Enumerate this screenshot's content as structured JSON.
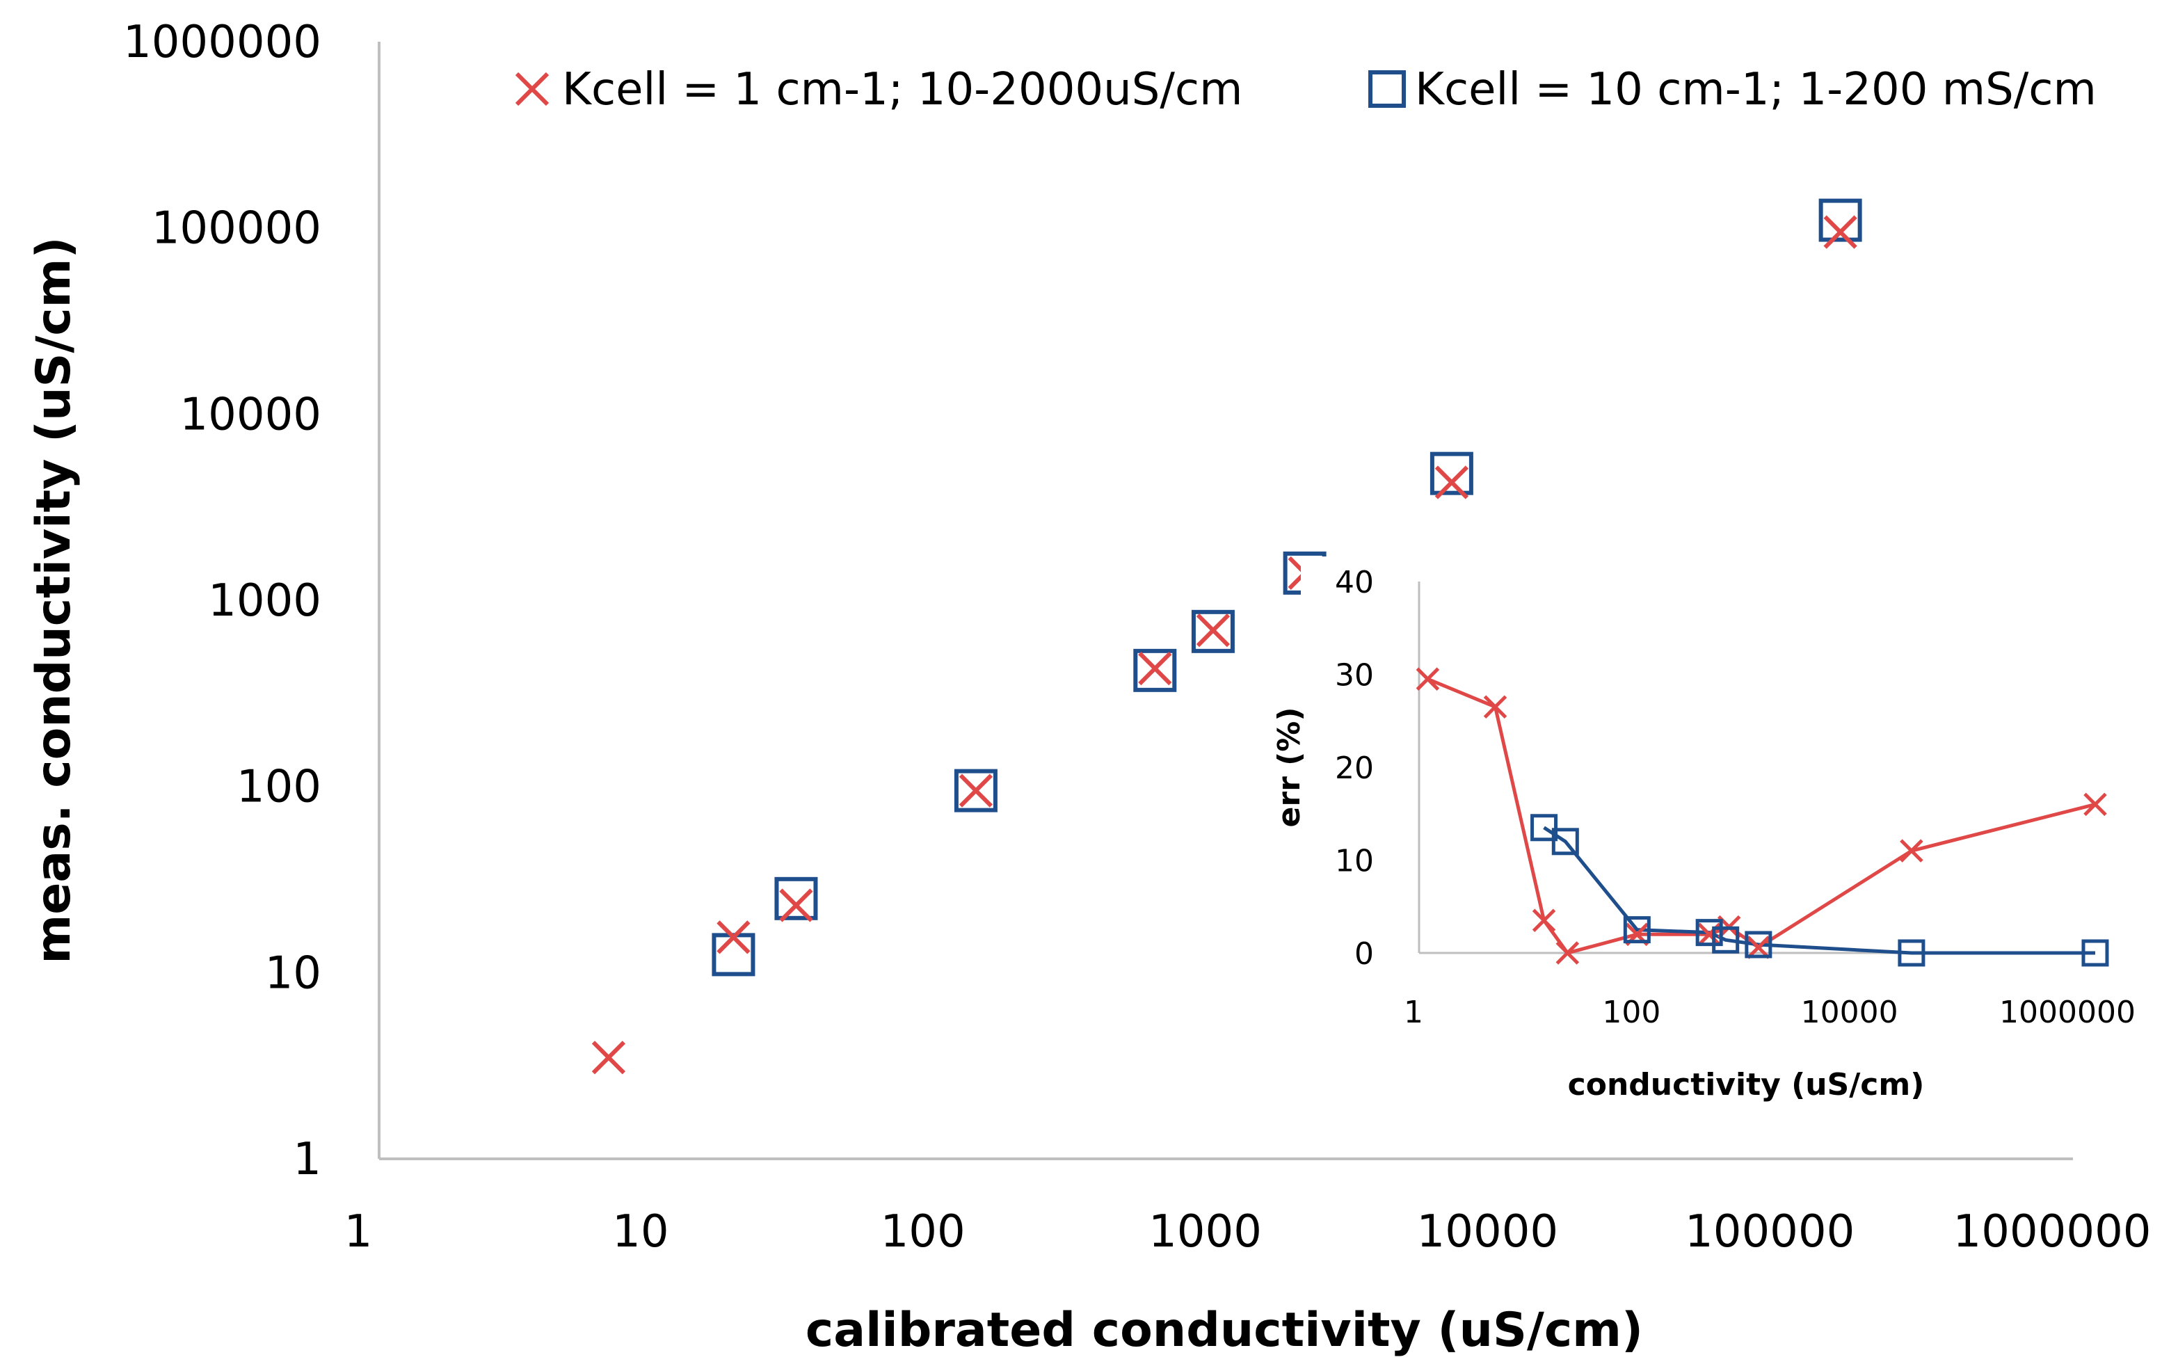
{
  "chart_data": [
    {
      "type": "scatter",
      "name": "main",
      "xscale": "log",
      "yscale": "log",
      "xlabel": "calibrated conductivity (uS/cm)",
      "ylabel": "meas. conductivity (uS/cm)",
      "xlim": [
        1,
        1000000
      ],
      "ylim": [
        1,
        1000000
      ],
      "x_ticks": [
        "1",
        "10",
        "100",
        "1000",
        "10000",
        "100000",
        "1000000"
      ],
      "y_ticks": [
        "1",
        "10",
        "100",
        "1000",
        "10000",
        "100000",
        "1000000"
      ],
      "legend_position": "top",
      "series": [
        {
          "name": "Kcell = 1 cm-1; 10-2000uS/cm",
          "marker": "x",
          "color": "#e04848",
          "points": [
            [
              6.5,
              3.5
            ],
            [
              18,
              15.5
            ],
            [
              30,
              23
            ],
            [
              130,
              95
            ],
            [
              560,
              430
            ],
            [
              900,
              690
            ],
            [
              1900,
              1400
            ],
            [
              6300,
              4300
            ],
            [
              150000,
              95000
            ]
          ]
        },
        {
          "name": "Kcell = 10 cm-1; 1-200 mS/cm",
          "marker": "square",
          "color": "#1f4e8c",
          "points": [
            [
              18,
              12.5
            ],
            [
              30,
              25
            ],
            [
              130,
              95
            ],
            [
              560,
              420
            ],
            [
              900,
              680
            ],
            [
              1900,
              1400
            ],
            [
              6300,
              4800
            ],
            [
              150000,
              110000
            ]
          ]
        }
      ]
    },
    {
      "type": "line",
      "name": "inset",
      "xscale": "log",
      "xlabel": "conductivity (uS/cm)",
      "ylabel": "err (%)",
      "xlim": [
        1,
        1000000
      ],
      "ylim": [
        0,
        40
      ],
      "x_ticks": [
        "1",
        "100",
        "10000",
        "1000000"
      ],
      "y_ticks": [
        "0",
        "10",
        "20",
        "30",
        "40"
      ],
      "series": [
        {
          "name": "Kcell = 1 cm-1; 10-2000uS/cm",
          "marker": "x",
          "color": "#e04848",
          "points": [
            [
              1.2,
              29.5
            ],
            [
              5,
              26.5
            ],
            [
              14,
              3.5
            ],
            [
              23,
              0
            ],
            [
              100,
              2
            ],
            [
              460,
              2
            ],
            [
              700,
              2.8
            ],
            [
              1300,
              0.6
            ],
            [
              33000,
              11
            ],
            [
              1600000,
              16
            ]
          ]
        },
        {
          "name": "Kcell = 10 cm-1; 1-200 mS/cm",
          "marker": "square",
          "color": "#1f4e8c",
          "points": [
            [
              14,
              13.5
            ],
            [
              22,
              12
            ],
            [
              100,
              2.5
            ],
            [
              460,
              2.2
            ],
            [
              650,
              1.4
            ],
            [
              1300,
              0.9
            ],
            [
              33000,
              0
            ],
            [
              1600000,
              0
            ]
          ]
        }
      ]
    }
  ]
}
